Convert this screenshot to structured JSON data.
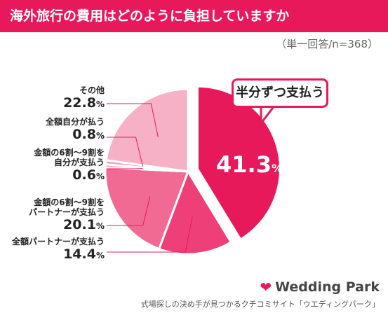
{
  "header": {
    "title": "海外旅行の費用はどのように負担していますか",
    "subtitle": "（単一回答/n=368）"
  },
  "chart_data": {
    "type": "pie",
    "slices": [
      {
        "label": "半分ずつ支払う",
        "value": 41.3,
        "value_text": "41.3",
        "color": "#e8195a"
      },
      {
        "label": "全額パートナーが支払う",
        "value": 14.4,
        "value_text": "14.4",
        "color": "#ee3f78"
      },
      {
        "label": "金額の6割〜9割をパートナーが支払う",
        "value": 20.1,
        "value_text": "20.1",
        "color": "#f06a93"
      },
      {
        "label": "金額の6割〜9割を自分が支払う",
        "value": 0.6,
        "value_text": "0.6",
        "color": "#f38bab"
      },
      {
        "label": "全額自分が払う",
        "value": 0.8,
        "value_text": "0.8",
        "color": "#f59bb7"
      },
      {
        "label": "その他",
        "value": 22.8,
        "value_text": "22.8",
        "color": "#f7b1c7"
      }
    ],
    "pct_symbol": "%"
  },
  "labels": {
    "other_line1": "その他",
    "self_all_line1": "全額自分が払う",
    "self_6_9_line1": "金額の6割〜9割を",
    "self_6_9_line2": "自分が支払う",
    "partner_6_9_line1": "金額の6割〜9割を",
    "partner_6_9_line2": "パートナーが支払う",
    "partner_all_line1": "全額パートナーが支払う"
  },
  "callout": {
    "text": "半分ずつ支払う"
  },
  "brand": {
    "logo_text": "Wedding Park",
    "accent": "#e8195a"
  },
  "footer": {
    "text": "式場探しの決め手が見つかるクチコミサイト「ウエディングパーク」"
  }
}
